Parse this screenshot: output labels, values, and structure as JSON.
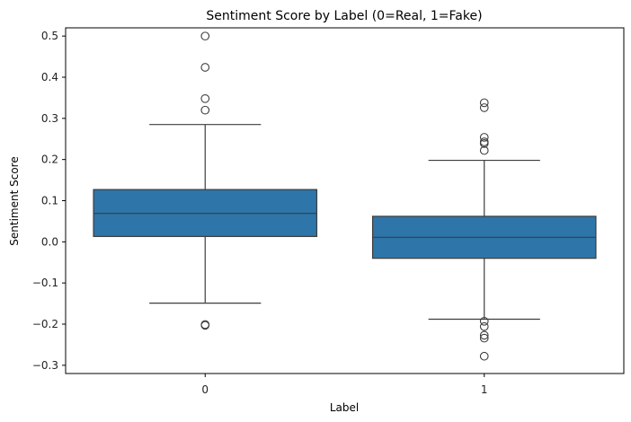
{
  "chart_data": {
    "type": "box",
    "title": "Sentiment Score by Label (0=Real, 1=Fake)",
    "xlabel": "Label",
    "ylabel": "Sentiment Score",
    "ylim": [
      -0.32,
      0.52
    ],
    "yticks": [
      -0.3,
      -0.2,
      -0.1,
      0.0,
      0.1,
      0.2,
      0.3,
      0.4,
      0.5
    ],
    "ytick_labels": [
      "−0.3",
      "−0.2",
      "−0.1",
      "0.0",
      "0.1",
      "0.2",
      "0.3",
      "0.4",
      "0.5"
    ],
    "categories": [
      "0",
      "1"
    ],
    "boxes": [
      {
        "category": "0",
        "whisker_low": -0.149,
        "q1": 0.013,
        "median": 0.069,
        "q3": 0.127,
        "whisker_high": 0.285,
        "outliers": [
          0.5,
          0.424,
          0.348,
          0.32,
          -0.201,
          -0.203
        ]
      },
      {
        "category": "1",
        "whisker_low": -0.188,
        "q1": -0.04,
        "median": 0.011,
        "q3": 0.062,
        "whisker_high": 0.198,
        "outliers": [
          0.338,
          0.326,
          0.254,
          0.243,
          0.239,
          0.222,
          -0.193,
          -0.206,
          -0.227,
          -0.234,
          -0.278
        ]
      }
    ],
    "grid": false,
    "colors": {
      "box_fill": "#2e75a9",
      "line": "#3d3d3d",
      "axis": "#000000"
    }
  }
}
